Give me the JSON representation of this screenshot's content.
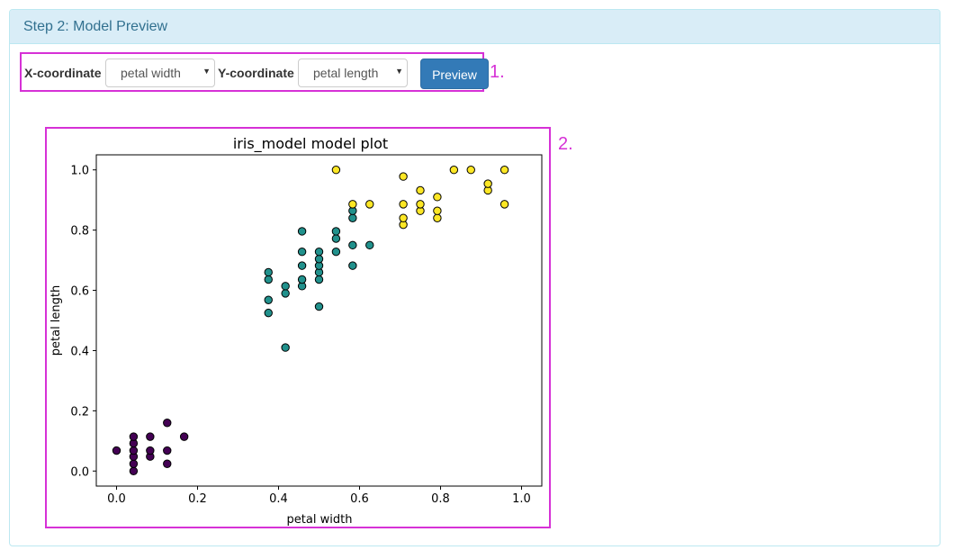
{
  "panel": {
    "heading": "Step 2: Model Preview"
  },
  "controls": {
    "x_label": "X-coordinate",
    "x_selected": "petal width",
    "y_label": "Y-coordinate",
    "y_selected": "petal length",
    "preview_label": "Preview",
    "caret_icon": "chevron-down-icon"
  },
  "annotations": {
    "marker_1": "1.",
    "marker_2": "2."
  },
  "colors": {
    "highlight": "#d631d6",
    "class_0": "#440154",
    "class_1": "#21918c",
    "class_2": "#fde725"
  },
  "chart_data": {
    "type": "scatter",
    "title": "iris_model model plot",
    "xlabel": "petal width",
    "ylabel": "petal length",
    "xlim": [
      -0.05,
      1.05
    ],
    "ylim": [
      -0.05,
      1.05
    ],
    "xticks": [
      "0.0",
      "0.2",
      "0.4",
      "0.6",
      "0.8",
      "1.0"
    ],
    "yticks": [
      "0.0",
      "0.2",
      "0.4",
      "0.6",
      "0.8",
      "1.0"
    ],
    "grid": false,
    "series": [
      {
        "color": "#440154",
        "points": [
          [
            0.0,
            0.068
          ],
          [
            0.042,
            0.0
          ],
          [
            0.042,
            0.024
          ],
          [
            0.042,
            0.048
          ],
          [
            0.042,
            0.068
          ],
          [
            0.042,
            0.092
          ],
          [
            0.042,
            0.114
          ],
          [
            0.083,
            0.048
          ],
          [
            0.083,
            0.068
          ],
          [
            0.083,
            0.114
          ],
          [
            0.125,
            0.024
          ],
          [
            0.125,
            0.068
          ],
          [
            0.125,
            0.16
          ],
          [
            0.167,
            0.114
          ]
        ]
      },
      {
        "color": "#21918c",
        "points": [
          [
            0.375,
            0.525
          ],
          [
            0.375,
            0.568
          ],
          [
            0.375,
            0.636
          ],
          [
            0.375,
            0.66
          ],
          [
            0.417,
            0.41
          ],
          [
            0.417,
            0.59
          ],
          [
            0.417,
            0.614
          ],
          [
            0.458,
            0.614
          ],
          [
            0.458,
            0.636
          ],
          [
            0.458,
            0.682
          ],
          [
            0.458,
            0.728
          ],
          [
            0.458,
            0.796
          ],
          [
            0.5,
            0.546
          ],
          [
            0.5,
            0.636
          ],
          [
            0.5,
            0.66
          ],
          [
            0.5,
            0.682
          ],
          [
            0.5,
            0.704
          ],
          [
            0.5,
            0.728
          ],
          [
            0.542,
            0.728
          ],
          [
            0.542,
            0.772
          ],
          [
            0.542,
            0.796
          ],
          [
            0.583,
            0.682
          ],
          [
            0.583,
            0.75
          ],
          [
            0.583,
            0.84
          ],
          [
            0.583,
            0.864
          ],
          [
            0.625,
            0.75
          ]
        ]
      },
      {
        "color": "#fde725",
        "points": [
          [
            0.542,
            1.0
          ],
          [
            0.583,
            0.886
          ],
          [
            0.625,
            0.886
          ],
          [
            0.708,
            0.818
          ],
          [
            0.708,
            0.84
          ],
          [
            0.708,
            0.886
          ],
          [
            0.708,
            0.978
          ],
          [
            0.75,
            0.864
          ],
          [
            0.75,
            0.886
          ],
          [
            0.75,
            0.932
          ],
          [
            0.792,
            0.84
          ],
          [
            0.792,
            0.864
          ],
          [
            0.792,
            0.91
          ],
          [
            0.833,
            1.0
          ],
          [
            0.875,
            1.0
          ],
          [
            0.917,
            0.932
          ],
          [
            0.917,
            0.954
          ],
          [
            0.958,
            0.886
          ],
          [
            0.958,
            1.0
          ]
        ]
      }
    ]
  }
}
